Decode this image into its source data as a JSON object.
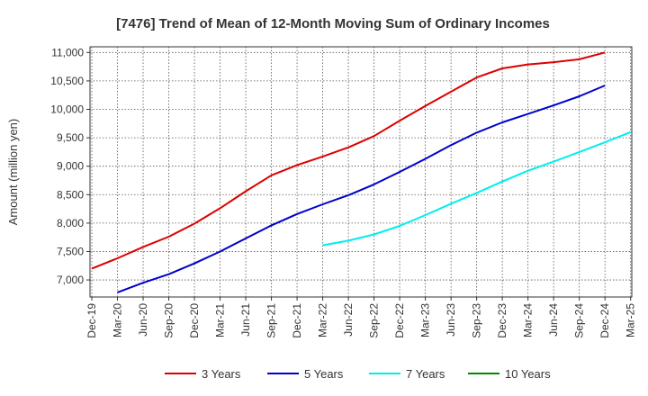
{
  "chart_data": {
    "type": "line",
    "title": "[7476]  Trend of Mean of 12-Month Moving Sum of Ordinary Incomes",
    "ylabel": "Amount (million yen)",
    "xlabel": "",
    "ylim": [
      6700,
      11100
    ],
    "y_ticks": [
      7000,
      7500,
      8000,
      8500,
      9000,
      9500,
      10000,
      10500,
      11000
    ],
    "y_tick_labels": [
      "7,000",
      "7,500",
      "8,000",
      "8,500",
      "9,000",
      "9,500",
      "10,000",
      "10,500",
      "11,000"
    ],
    "x_tick_labels": [
      "Dec-19",
      "Mar-20",
      "Jun-20",
      "Sep-20",
      "Dec-20",
      "Mar-21",
      "Jun-21",
      "Sep-21",
      "Dec-21",
      "Mar-22",
      "Jun-22",
      "Sep-22",
      "Dec-22",
      "Mar-23",
      "Jun-23",
      "Sep-23",
      "Dec-23",
      "Mar-24",
      "Jun-24",
      "Sep-24",
      "Dec-24",
      "Mar-25"
    ],
    "series": [
      {
        "name": "3 Years",
        "color": "#dd0000",
        "start_index": 0,
        "values": [
          7200,
          7380,
          7580,
          7760,
          7990,
          8260,
          8560,
          8840,
          9020,
          9170,
          9330,
          9530,
          9800,
          10060,
          10310,
          10560,
          10720,
          10790,
          10830,
          10880,
          11000
        ]
      },
      {
        "name": "5 Years",
        "color": "#0000cc",
        "start_index": 1,
        "values": [
          6780,
          6950,
          7100,
          7290,
          7500,
          7730,
          7960,
          8160,
          8330,
          8490,
          8680,
          8900,
          9130,
          9370,
          9590,
          9770,
          9920,
          10070,
          10230,
          10420
        ]
      },
      {
        "name": "7 Years",
        "color": "#00eeee",
        "start_index": 9,
        "values": [
          7610,
          7690,
          7800,
          7950,
          8140,
          8340,
          8530,
          8730,
          8920,
          9080,
          9250,
          9420,
          9600
        ]
      },
      {
        "name": "10 Years",
        "color": "#008800",
        "start_index": 0,
        "values": []
      }
    ]
  }
}
